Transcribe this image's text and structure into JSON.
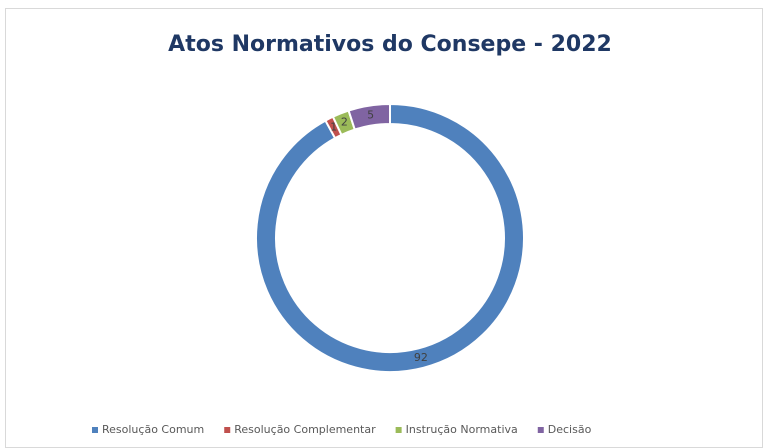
{
  "chart_data": {
    "type": "donut",
    "title": "Atos Normativos do Consepe - 2022",
    "categories": [
      "Resolução Comum",
      "Resolução Complementar",
      "Instrução Normativa",
      "Decisão"
    ],
    "values": [
      92,
      1,
      2,
      5
    ],
    "colors": [
      "#4f81bd",
      "#c0504d",
      "#9bbb59",
      "#8064a2"
    ],
    "legend": "bottom"
  }
}
